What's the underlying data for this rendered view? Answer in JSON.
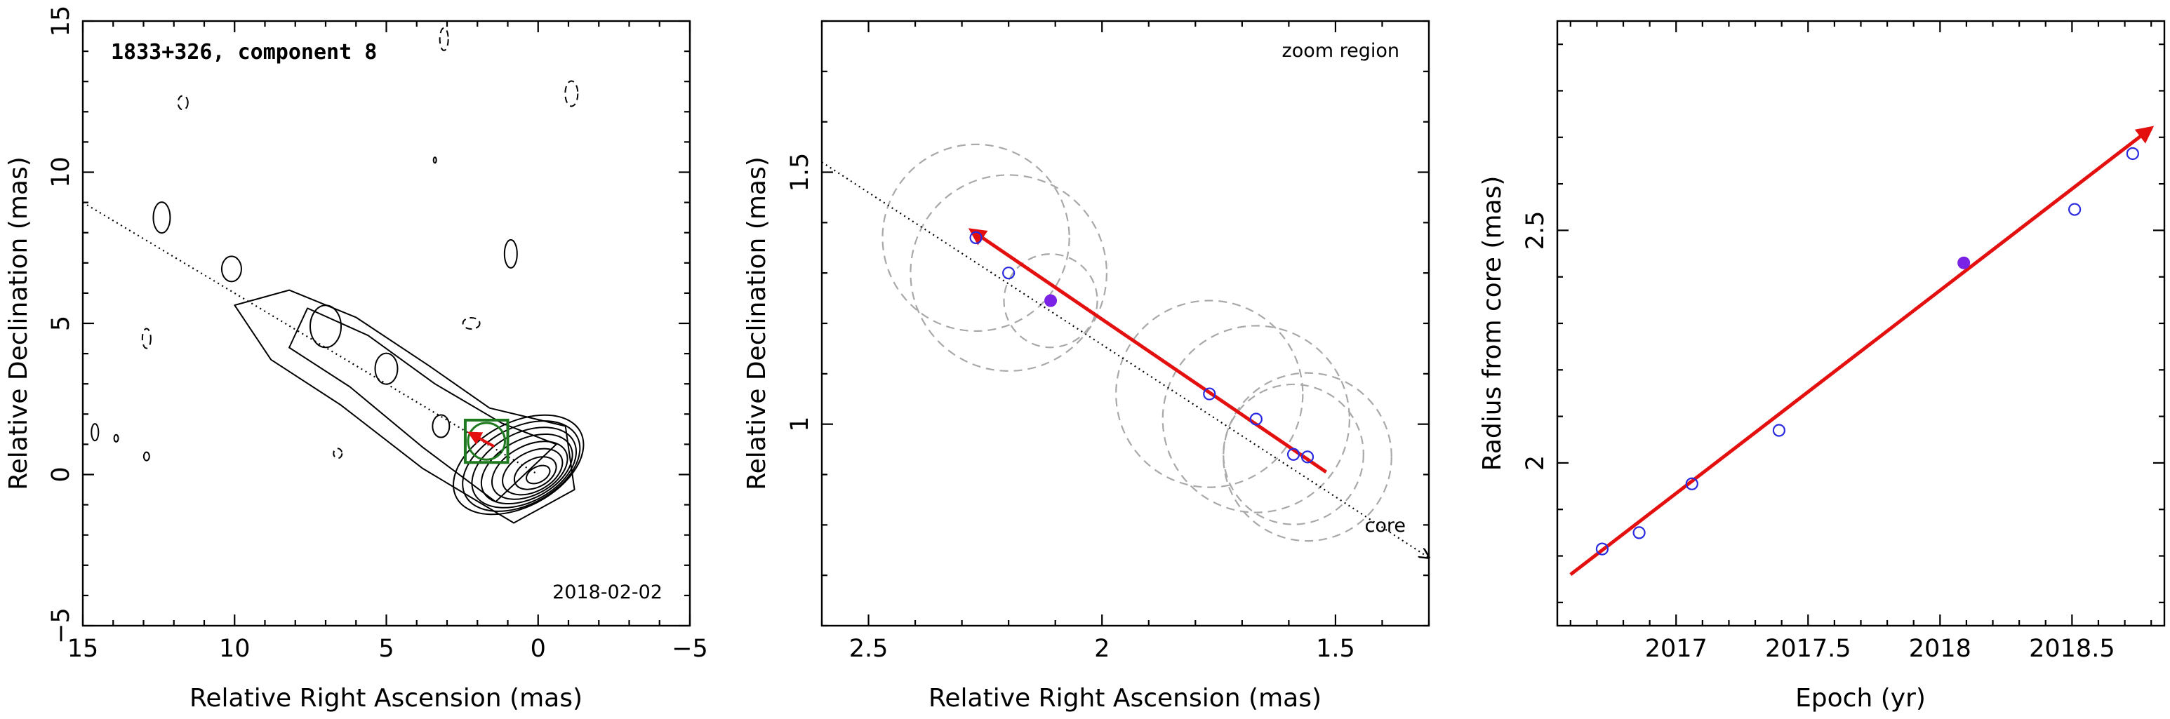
{
  "chart_data": [
    {
      "type": "contour",
      "title": "1833+326, component 8",
      "date_label": "2018-02-02",
      "xlabel": "Relative Right Ascension (mas)",
      "ylabel": "Relative Declination (mas)",
      "xlim": [
        15,
        -5
      ],
      "ylim": [
        -5,
        15
      ],
      "xticks": [
        15,
        10,
        5,
        0,
        -5
      ],
      "yticks": [
        -5,
        0,
        5,
        10,
        15
      ],
      "xtick_labels": [
        "15",
        "10",
        "5",
        "0",
        "−5"
      ],
      "ytick_labels": [
        "−5",
        "0",
        "5",
        "10",
        "15"
      ],
      "jet_axis": {
        "x": [
          15,
          0
        ],
        "y": [
          9.0,
          0.0
        ]
      },
      "core": {
        "x": 0,
        "y": 0
      },
      "zoom_box": {
        "x": [
          2.4,
          1.0
        ],
        "y": [
          1.8,
          0.4
        ]
      },
      "component_track": {
        "x": [
          2.25,
          1.45
        ],
        "y": [
          1.37,
          0.93
        ]
      },
      "colors": {
        "zoom_box": "#1f7a1f",
        "track": "#e41010"
      }
    },
    {
      "type": "scatter",
      "annotation_top": "zoom region",
      "annotation_core": "core",
      "xlabel": "Relative Right Ascension (mas)",
      "ylabel": "Relative Declination (mas)",
      "xlim": [
        2.6,
        1.3
      ],
      "ylim": [
        0.6,
        1.8
      ],
      "xticks": [
        2.5,
        2,
        1.5
      ],
      "yticks": [
        1,
        1.5
      ],
      "xtick_labels": [
        "2.5",
        "2",
        "1.5"
      ],
      "ytick_labels": [
        "1",
        "1.5"
      ],
      "series": [
        {
          "x": [
            2.27,
            2.2,
            1.77,
            1.67,
            1.59,
            1.56
          ],
          "y": [
            1.37,
            1.3,
            1.06,
            1.01,
            0.94,
            0.935
          ],
          "marker": "open-circle"
        },
        {
          "x": [
            2.11
          ],
          "y": [
            1.245
          ],
          "marker": "filled-circle"
        }
      ],
      "beams": [
        {
          "x": 2.27,
          "y": 1.37,
          "r": 0.2
        },
        {
          "x": 2.2,
          "y": 1.3,
          "r": 0.21
        },
        {
          "x": 2.11,
          "y": 1.245,
          "r": 0.1
        },
        {
          "x": 1.77,
          "y": 1.06,
          "r": 0.2
        },
        {
          "x": 1.67,
          "y": 1.01,
          "r": 0.2
        },
        {
          "x": 1.59,
          "y": 0.94,
          "r": 0.15
        },
        {
          "x": 1.56,
          "y": 0.935,
          "r": 0.18
        }
      ],
      "jet_axis": {
        "x": [
          2.6,
          1.3
        ],
        "y": [
          1.52,
          0.735
        ]
      },
      "fit_arrow": {
        "x": [
          1.52,
          2.28
        ],
        "y": [
          0.905,
          1.385
        ]
      },
      "colors": {
        "points": "#2a2ae0",
        "filled_point": "#7a22e6",
        "fit": "#e41010",
        "beams": "#a8a8a8"
      }
    },
    {
      "type": "scatter",
      "xlabel": "Epoch (yr)",
      "ylabel": "Radius from core (mas)",
      "xlim": [
        2016.55,
        2018.85
      ],
      "ylim": [
        1.65,
        2.95
      ],
      "xticks": [
        2017,
        2017.5,
        2018,
        2018.5
      ],
      "yticks": [
        2,
        2.5
      ],
      "xtick_labels": [
        "2017",
        "2017.5",
        "2018",
        "2018.5"
      ],
      "ytick_labels": [
        "2",
        "2.5"
      ],
      "series": [
        {
          "x": [
            2016.72,
            2016.86,
            2017.06,
            2017.39,
            2018.51,
            2018.73
          ],
          "y": [
            1.815,
            1.85,
            1.955,
            2.07,
            2.545,
            2.665
          ],
          "marker": "open-circle"
        },
        {
          "x": [
            2018.09
          ],
          "y": [
            2.43
          ],
          "marker": "filled-circle"
        }
      ],
      "fit_arrow": {
        "x": [
          2016.6,
          2018.8
        ],
        "y": [
          1.76,
          2.72
        ]
      },
      "colors": {
        "points": "#2a2ae0",
        "filled_point": "#7a22e6",
        "fit": "#e41010"
      }
    }
  ]
}
